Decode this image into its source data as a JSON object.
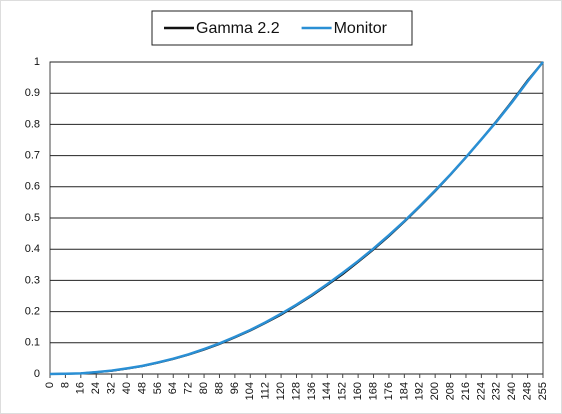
{
  "chart_data": {
    "type": "line",
    "categories": [
      "0",
      "8",
      "16",
      "24",
      "32",
      "40",
      "48",
      "56",
      "64",
      "72",
      "80",
      "88",
      "96",
      "104",
      "112",
      "120",
      "128",
      "136",
      "144",
      "152",
      "160",
      "168",
      "176",
      "184",
      "192",
      "200",
      "208",
      "216",
      "224",
      "232",
      "240",
      "248",
      "255"
    ],
    "series": [
      {
        "name": "Gamma 2.2",
        "color": "#111111",
        "values": [
          0,
          0.001,
          0.002,
          0.006,
          0.01,
          0.017,
          0.025,
          0.036,
          0.048,
          0.062,
          0.078,
          0.096,
          0.117,
          0.139,
          0.164,
          0.19,
          0.22,
          0.251,
          0.285,
          0.32,
          0.359,
          0.399,
          0.442,
          0.488,
          0.536,
          0.586,
          0.639,
          0.694,
          0.752,
          0.812,
          0.875,
          0.941,
          1
        ]
      },
      {
        "name": "Monitor",
        "color": "#2a8fd4",
        "values": [
          0,
          0.001,
          0.002,
          0.006,
          0.011,
          0.018,
          0.026,
          0.037,
          0.049,
          0.063,
          0.08,
          0.098,
          0.119,
          0.141,
          0.166,
          0.193,
          0.222,
          0.254,
          0.288,
          0.324,
          0.362,
          0.402,
          0.445,
          0.49,
          0.538,
          0.588,
          0.64,
          0.695,
          0.752,
          0.81,
          0.872,
          0.938,
          1
        ]
      }
    ],
    "ylim": [
      0,
      1
    ],
    "yticks": [
      0,
      0.1,
      0.2,
      0.3,
      0.4,
      0.5,
      0.6,
      0.7,
      0.8,
      0.9,
      1
    ],
    "grid": true,
    "legend": "top"
  }
}
